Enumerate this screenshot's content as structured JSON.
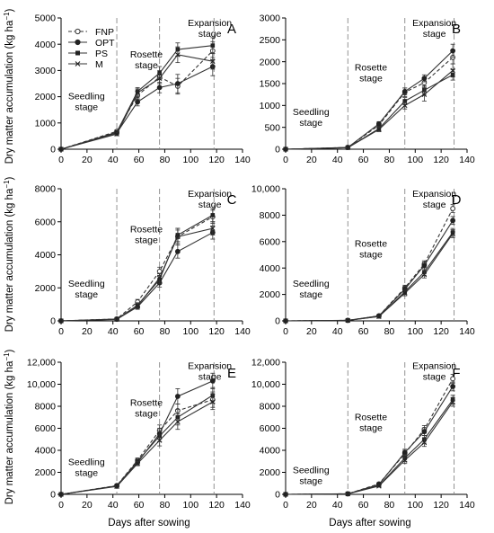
{
  "figure": {
    "y_axis_title": "Dry matter accumulation (kg ha",
    "y_axis_unit_sup": "−1",
    "y_axis_unit_close": ")",
    "x_axis_title": "Days after sowing"
  },
  "legend": {
    "placement": "top-left of panel A",
    "entries": [
      {
        "label": "FNP",
        "marker": "open-circle",
        "line": "dashed"
      },
      {
        "label": "OPT",
        "marker": "filled-circle",
        "line": "solid"
      },
      {
        "label": "PS",
        "marker": "filled-square",
        "line": "solid"
      },
      {
        "label": "M",
        "marker": "x-cross",
        "line": "solid"
      }
    ]
  },
  "colors": {
    "series": "#333333",
    "stage_divider": "#888888",
    "axis": "#000000"
  },
  "chart_data": [
    {
      "panel_label": "A",
      "type": "line",
      "xlim": [
        0,
        140
      ],
      "xticks": [
        0,
        20,
        40,
        60,
        80,
        100,
        120,
        140
      ],
      "ylim": [
        0,
        5000
      ],
      "yticks": [
        "0",
        "1000",
        "2000",
        "3000",
        "4000",
        "5000"
      ],
      "stage_boundaries": [
        43,
        76,
        118
      ],
      "stage_labels": [
        {
          "lines": [
            "Seedling",
            "stage"
          ]
        },
        {
          "lines": [
            "Rosette",
            "stage"
          ]
        },
        {
          "lines": [
            "Expansion",
            "stage"
          ]
        }
      ],
      "x": [
        0,
        43,
        59,
        76,
        90,
        117
      ],
      "series": [
        {
          "name": "FNP",
          "values": [
            0,
            680,
            2050,
            2750,
            2400,
            3750
          ],
          "errors": [
            0,
            60,
            150,
            250,
            300,
            350
          ]
        },
        {
          "name": "OPT",
          "values": [
            0,
            620,
            1800,
            2350,
            2500,
            3150
          ],
          "errors": [
            0,
            60,
            150,
            200,
            350,
            350
          ]
        },
        {
          "name": "PS",
          "values": [
            0,
            650,
            2200,
            2900,
            3800,
            3950
          ],
          "errors": [
            0,
            60,
            150,
            250,
            250,
            300
          ]
        },
        {
          "name": "M",
          "values": [
            0,
            580,
            2150,
            2700,
            3600,
            3350
          ],
          "errors": [
            0,
            60,
            150,
            200,
            300,
            300
          ]
        }
      ]
    },
    {
      "panel_label": "B",
      "type": "line",
      "xlim": [
        0,
        140
      ],
      "xticks": [
        0,
        20,
        40,
        60,
        80,
        100,
        120,
        140
      ],
      "ylim": [
        0,
        3000
      ],
      "yticks": [
        "0",
        "500",
        "1000",
        "1500",
        "2000",
        "2500",
        "3000"
      ],
      "stage_boundaries": [
        48,
        92,
        130
      ],
      "stage_labels": [
        {
          "lines": [
            "Seedling",
            "stage"
          ]
        },
        {
          "lines": [
            "Rosette",
            "stage"
          ]
        },
        {
          "lines": [
            "Expansion",
            "stage"
          ]
        }
      ],
      "x": [
        0,
        48,
        72,
        92,
        107,
        129
      ],
      "series": [
        {
          "name": "FNP",
          "values": [
            0,
            40,
            550,
            1300,
            1520,
            2100
          ],
          "errors": [
            0,
            10,
            50,
            100,
            100,
            150
          ]
        },
        {
          "name": "OPT",
          "values": [
            0,
            40,
            580,
            1320,
            1620,
            2250
          ],
          "errors": [
            0,
            10,
            50,
            80,
            80,
            150
          ]
        },
        {
          "name": "PS",
          "values": [
            0,
            35,
            470,
            1100,
            1350,
            1700
          ],
          "errors": [
            0,
            10,
            50,
            80,
            100,
            120
          ]
        },
        {
          "name": "M",
          "values": [
            0,
            35,
            450,
            1000,
            1250,
            1800
          ],
          "errors": [
            0,
            10,
            50,
            80,
            150,
            150
          ]
        }
      ]
    },
    {
      "panel_label": "C",
      "type": "line",
      "xlim": [
        0,
        140
      ],
      "xticks": [
        0,
        20,
        40,
        60,
        80,
        100,
        120,
        140
      ],
      "ylim": [
        0,
        8000
      ],
      "yticks": [
        "0",
        "2000",
        "4000",
        "6000",
        "8000"
      ],
      "stage_boundaries": [
        43,
        76,
        118
      ],
      "stage_labels": [
        {
          "lines": [
            "Seedling",
            "stage"
          ]
        },
        {
          "lines": [
            "Rosette",
            "stage"
          ]
        },
        {
          "lines": [
            "Expansion",
            "stage"
          ]
        }
      ],
      "x": [
        0,
        43,
        59,
        76,
        90,
        117
      ],
      "series": [
        {
          "name": "FNP",
          "values": [
            0,
            120,
            1150,
            3000,
            5100,
            6300
          ],
          "errors": [
            0,
            30,
            150,
            250,
            500,
            400
          ]
        },
        {
          "name": "OPT",
          "values": [
            0,
            100,
            850,
            2300,
            4200,
            5350
          ],
          "errors": [
            0,
            30,
            150,
            250,
            400,
            400
          ]
        },
        {
          "name": "PS",
          "values": [
            0,
            110,
            950,
            2500,
            5200,
            6400
          ],
          "errors": [
            0,
            30,
            150,
            250,
            400,
            400
          ]
        },
        {
          "name": "M",
          "values": [
            0,
            90,
            900,
            2600,
            5100,
            5600
          ],
          "errors": [
            0,
            30,
            150,
            250,
            400,
            400
          ]
        }
      ]
    },
    {
      "panel_label": "D",
      "type": "line",
      "xlim": [
        0,
        140
      ],
      "xticks": [
        0,
        20,
        40,
        60,
        80,
        100,
        120,
        140
      ],
      "ylim": [
        0,
        10000
      ],
      "yticks": [
        "0",
        "2000",
        "4000",
        "6000",
        "8000",
        "10,000"
      ],
      "stage_boundaries": [
        48,
        92,
        130
      ],
      "stage_labels": [
        {
          "lines": [
            "Seedling",
            "stage"
          ]
        },
        {
          "lines": [
            "Rosette",
            "stage"
          ]
        },
        {
          "lines": [
            "Expansion",
            "stage"
          ]
        }
      ],
      "x": [
        0,
        48,
        72,
        92,
        107,
        129
      ],
      "series": [
        {
          "name": "FNP",
          "values": [
            0,
            40,
            380,
            2500,
            4300,
            8500
          ],
          "errors": [
            0,
            10,
            50,
            200,
            250,
            300
          ]
        },
        {
          "name": "OPT",
          "values": [
            0,
            40,
            380,
            2400,
            4200,
            7600
          ],
          "errors": [
            0,
            10,
            50,
            200,
            250,
            300
          ]
        },
        {
          "name": "PS",
          "values": [
            0,
            35,
            330,
            2200,
            3700,
            6700
          ],
          "errors": [
            0,
            10,
            50,
            200,
            250,
            300
          ]
        },
        {
          "name": "M",
          "values": [
            0,
            35,
            330,
            2100,
            3500,
            6600
          ],
          "errors": [
            0,
            10,
            50,
            200,
            250,
            300
          ]
        }
      ]
    },
    {
      "panel_label": "E",
      "type": "line",
      "xlim": [
        0,
        140
      ],
      "xticks": [
        0,
        20,
        40,
        60,
        80,
        100,
        120,
        140
      ],
      "ylim": [
        0,
        12000
      ],
      "yticks": [
        "0",
        "2000",
        "4000",
        "6000",
        "8000",
        "10,000",
        "12,000"
      ],
      "stage_boundaries": [
        43,
        76,
        118
      ],
      "stage_labels": [
        {
          "lines": [
            "Seedling",
            "stage"
          ]
        },
        {
          "lines": [
            "Rosette",
            "stage"
          ]
        },
        {
          "lines": [
            "Expansion",
            "stage"
          ]
        }
      ],
      "x": [
        0,
        43,
        59,
        76,
        90,
        117
      ],
      "series": [
        {
          "name": "FNP",
          "values": [
            0,
            800,
            3100,
            5800,
            7600,
            8600
          ],
          "errors": [
            0,
            80,
            200,
            500,
            600,
            700
          ]
        },
        {
          "name": "OPT",
          "values": [
            0,
            750,
            2900,
            5500,
            8900,
            10300
          ],
          "errors": [
            0,
            80,
            200,
            500,
            700,
            700
          ]
        },
        {
          "name": "PS",
          "values": [
            0,
            780,
            3000,
            5300,
            7000,
            9000
          ],
          "errors": [
            0,
            80,
            200,
            500,
            700,
            700
          ]
        },
        {
          "name": "M",
          "values": [
            0,
            720,
            2800,
            4900,
            6600,
            8400
          ],
          "errors": [
            0,
            80,
            200,
            500,
            700,
            700
          ]
        }
      ]
    },
    {
      "panel_label": "F",
      "type": "line",
      "xlim": [
        0,
        140
      ],
      "xticks": [
        0,
        20,
        40,
        60,
        80,
        100,
        120,
        140
      ],
      "ylim": [
        0,
        12000
      ],
      "yticks": [
        "0",
        "2000",
        "4000",
        "6000",
        "8000",
        "10,000",
        "12,000"
      ],
      "stage_boundaries": [
        48,
        92,
        130
      ],
      "stage_labels": [
        {
          "lines": [
            "Seedling",
            "stage"
          ]
        },
        {
          "lines": [
            "Rosette",
            "stage"
          ]
        },
        {
          "lines": [
            "Expansion",
            "stage"
          ]
        }
      ],
      "x": [
        0,
        48,
        72,
        92,
        107,
        129
      ],
      "series": [
        {
          "name": "FNP",
          "values": [
            0,
            50,
            950,
            3700,
            5900,
            10500
          ],
          "errors": [
            0,
            10,
            100,
            300,
            350,
            400
          ]
        },
        {
          "name": "OPT",
          "values": [
            0,
            50,
            900,
            3800,
            5700,
            9800
          ],
          "errors": [
            0,
            10,
            100,
            300,
            350,
            400
          ]
        },
        {
          "name": "PS",
          "values": [
            0,
            45,
            800,
            3300,
            5000,
            8600
          ],
          "errors": [
            0,
            10,
            100,
            300,
            350,
            400
          ]
        },
        {
          "name": "M",
          "values": [
            0,
            45,
            750,
            3100,
            4700,
            8400
          ],
          "errors": [
            0,
            10,
            100,
            300,
            350,
            400
          ]
        }
      ]
    }
  ]
}
